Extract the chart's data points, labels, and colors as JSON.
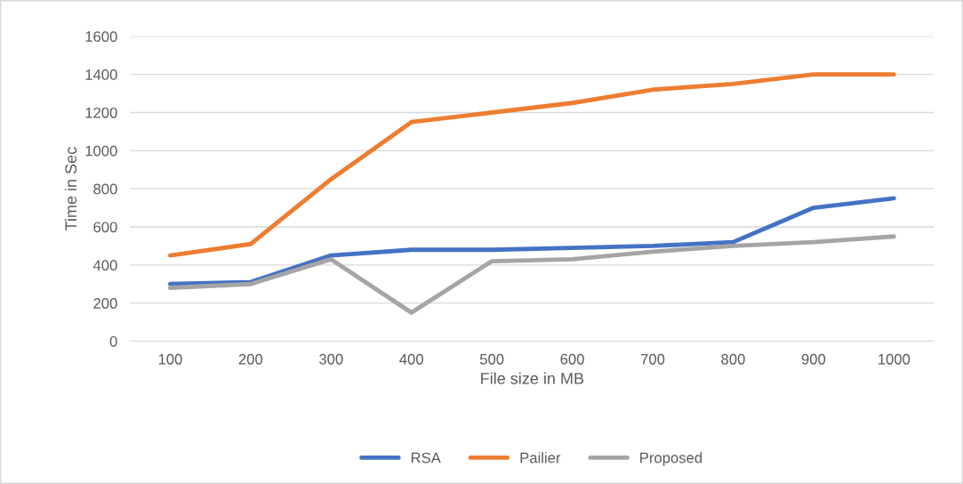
{
  "chart_data": {
    "type": "line",
    "xlabel": "File size in MB",
    "ylabel": "Time in Sec",
    "categories": [
      "100",
      "200",
      "300",
      "400",
      "500",
      "600",
      "700",
      "800",
      "900",
      "1000"
    ],
    "series": [
      {
        "name": "RSA",
        "color": "#4472c4",
        "values": [
          300,
          310,
          450,
          480,
          480,
          490,
          500,
          520,
          700,
          750
        ]
      },
      {
        "name": "Pailier",
        "color": "#ed7d31",
        "values": [
          450,
          510,
          850,
          1150,
          1200,
          1250,
          1320,
          1350,
          1400,
          1400
        ]
      },
      {
        "name": "Proposed",
        "color": "#a5a5a5",
        "values": [
          280,
          300,
          430,
          150,
          420,
          430,
          470,
          500,
          520,
          550
        ]
      }
    ],
    "ylim": [
      0,
      1600
    ],
    "yticks": [
      0,
      200,
      400,
      600,
      800,
      1000,
      1200,
      1400,
      1600
    ],
    "grid": "y",
    "legend": "bottom",
    "marker": "none",
    "line_style": "solid"
  }
}
